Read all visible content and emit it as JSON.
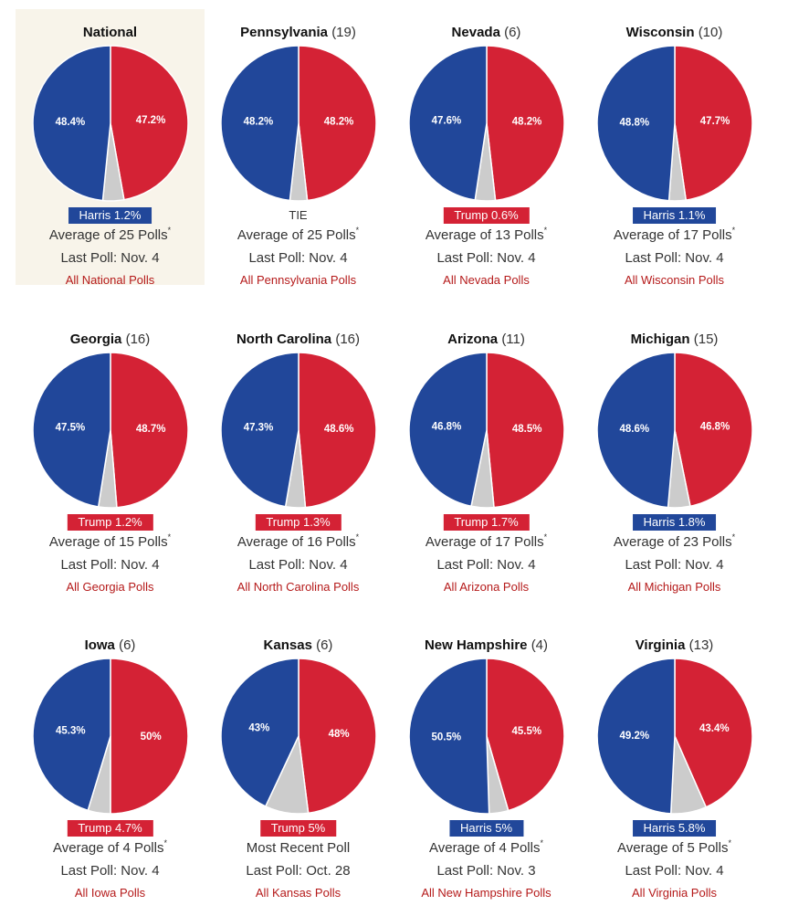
{
  "colors": {
    "harris": "#21479a",
    "trump": "#d42235",
    "other": "#cccccc",
    "link": "#b51a1a",
    "highlight": "#f8f4ea"
  },
  "chart_data": [
    {
      "type": "pie",
      "name": "National",
      "ev": "",
      "slices": [
        {
          "label": "Trump",
          "value": 47.2,
          "text": "47.2%"
        },
        {
          "label": "Other",
          "value": 4.4,
          "text": ""
        },
        {
          "label": "Harris",
          "value": 48.4,
          "text": "48.4%"
        }
      ],
      "lead": {
        "text": "Harris 1.2%",
        "party": "harris"
      },
      "poll_count_text": "Average of 25 Polls",
      "asterisk": "*",
      "last_poll": "Last Poll: Nov. 4",
      "link": "All National Polls",
      "highlight": true
    },
    {
      "type": "pie",
      "name": "Pennsylvania",
      "ev": "(19)",
      "slices": [
        {
          "label": "Trump",
          "value": 48.2,
          "text": "48.2%"
        },
        {
          "label": "Other",
          "value": 3.6,
          "text": ""
        },
        {
          "label": "Harris",
          "value": 48.2,
          "text": "48.2%"
        }
      ],
      "lead": {
        "text": "TIE",
        "party": "tie"
      },
      "poll_count_text": "Average of 25 Polls",
      "asterisk": "*",
      "last_poll": "Last Poll: Nov. 4",
      "link": "All Pennsylvania Polls"
    },
    {
      "type": "pie",
      "name": "Nevada",
      "ev": "(6)",
      "slices": [
        {
          "label": "Trump",
          "value": 48.2,
          "text": "48.2%"
        },
        {
          "label": "Other",
          "value": 4.2,
          "text": ""
        },
        {
          "label": "Harris",
          "value": 47.6,
          "text": "47.6%"
        }
      ],
      "lead": {
        "text": "Trump 0.6%",
        "party": "trump"
      },
      "poll_count_text": "Average of 13 Polls",
      "asterisk": "*",
      "last_poll": "Last Poll: Nov. 4",
      "link": "All Nevada Polls"
    },
    {
      "type": "pie",
      "name": "Wisconsin",
      "ev": "(10)",
      "slices": [
        {
          "label": "Trump",
          "value": 47.7,
          "text": "47.7%"
        },
        {
          "label": "Other",
          "value": 3.5,
          "text": ""
        },
        {
          "label": "Harris",
          "value": 48.8,
          "text": "48.8%"
        }
      ],
      "lead": {
        "text": "Harris 1.1%",
        "party": "harris"
      },
      "poll_count_text": "Average of 17 Polls",
      "asterisk": "*",
      "last_poll": "Last Poll: Nov. 4",
      "link": "All Wisconsin Polls"
    },
    {
      "type": "pie",
      "name": "Georgia",
      "ev": "(16)",
      "slices": [
        {
          "label": "Trump",
          "value": 48.7,
          "text": "48.7%"
        },
        {
          "label": "Other",
          "value": 3.8,
          "text": ""
        },
        {
          "label": "Harris",
          "value": 47.5,
          "text": "47.5%"
        }
      ],
      "lead": {
        "text": "Trump 1.2%",
        "party": "trump"
      },
      "poll_count_text": "Average of 15 Polls",
      "asterisk": "*",
      "last_poll": "Last Poll: Nov. 4",
      "link": "All Georgia Polls"
    },
    {
      "type": "pie",
      "name": "North Carolina",
      "ev": "(16)",
      "slices": [
        {
          "label": "Trump",
          "value": 48.6,
          "text": "48.6%"
        },
        {
          "label": "Other",
          "value": 4.1,
          "text": ""
        },
        {
          "label": "Harris",
          "value": 47.3,
          "text": "47.3%"
        }
      ],
      "lead": {
        "text": "Trump 1.3%",
        "party": "trump"
      },
      "poll_count_text": "Average of 16 Polls",
      "asterisk": "*",
      "last_poll": "Last Poll: Nov. 4",
      "link": "All North Carolina Polls"
    },
    {
      "type": "pie",
      "name": "Arizona",
      "ev": "(11)",
      "slices": [
        {
          "label": "Trump",
          "value": 48.5,
          "text": "48.5%"
        },
        {
          "label": "Other",
          "value": 4.7,
          "text": ""
        },
        {
          "label": "Harris",
          "value": 46.8,
          "text": "46.8%"
        }
      ],
      "lead": {
        "text": "Trump 1.7%",
        "party": "trump"
      },
      "poll_count_text": "Average of 17 Polls",
      "asterisk": "*",
      "last_poll": "Last Poll: Nov. 4",
      "link": "All Arizona Polls"
    },
    {
      "type": "pie",
      "name": "Michigan",
      "ev": "(15)",
      "slices": [
        {
          "label": "Trump",
          "value": 46.8,
          "text": "46.8%"
        },
        {
          "label": "Other",
          "value": 4.6,
          "text": ""
        },
        {
          "label": "Harris",
          "value": 48.6,
          "text": "48.6%"
        }
      ],
      "lead": {
        "text": "Harris 1.8%",
        "party": "harris"
      },
      "poll_count_text": "Average of 23 Polls",
      "asterisk": "*",
      "last_poll": "Last Poll: Nov. 4",
      "link": "All Michigan Polls"
    },
    {
      "type": "pie",
      "name": "Iowa",
      "ev": "(6)",
      "slices": [
        {
          "label": "Trump",
          "value": 50,
          "text": "50%"
        },
        {
          "label": "Other",
          "value": 4.7,
          "text": ""
        },
        {
          "label": "Harris",
          "value": 45.3,
          "text": "45.3%"
        }
      ],
      "lead": {
        "text": "Trump 4.7%",
        "party": "trump"
      },
      "poll_count_text": "Average of 4 Polls",
      "asterisk": "*",
      "last_poll": "Last Poll: Nov. 4",
      "link": "All Iowa Polls"
    },
    {
      "type": "pie",
      "name": "Kansas",
      "ev": "(6)",
      "slices": [
        {
          "label": "Trump",
          "value": 48,
          "text": "48%"
        },
        {
          "label": "Other",
          "value": 9,
          "text": ""
        },
        {
          "label": "Harris",
          "value": 43,
          "text": "43%"
        }
      ],
      "lead": {
        "text": "Trump 5%",
        "party": "trump"
      },
      "poll_count_text": "Most Recent Poll",
      "asterisk": "",
      "last_poll": "Last Poll: Oct. 28",
      "link": "All Kansas Polls"
    },
    {
      "type": "pie",
      "name": "New Hampshire",
      "ev": "(4)",
      "slices": [
        {
          "label": "Trump",
          "value": 45.5,
          "text": "45.5%"
        },
        {
          "label": "Other",
          "value": 4,
          "text": ""
        },
        {
          "label": "Harris",
          "value": 50.5,
          "text": "50.5%"
        }
      ],
      "lead": {
        "text": "Harris 5%",
        "party": "harris"
      },
      "poll_count_text": "Average of 4 Polls",
      "asterisk": "*",
      "last_poll": "Last Poll: Nov. 3",
      "link": "All New Hampshire Polls"
    },
    {
      "type": "pie",
      "name": "Virginia",
      "ev": "(13)",
      "slices": [
        {
          "label": "Trump",
          "value": 43.4,
          "text": "43.4%"
        },
        {
          "label": "Other",
          "value": 7.4,
          "text": ""
        },
        {
          "label": "Harris",
          "value": 49.2,
          "text": "49.2%"
        }
      ],
      "lead": {
        "text": "Harris 5.8%",
        "party": "harris"
      },
      "poll_count_text": "Average of 5 Polls",
      "asterisk": "*",
      "last_poll": "Last Poll: Nov. 4",
      "link": "All Virginia Polls"
    }
  ]
}
